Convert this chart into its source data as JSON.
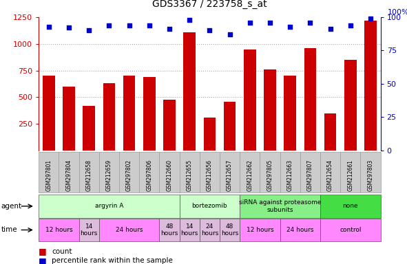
{
  "title": "GDS3367 / 223758_s_at",
  "samples": [
    "GSM297801",
    "GSM297804",
    "GSM212658",
    "GSM212659",
    "GSM297802",
    "GSM297806",
    "GSM212660",
    "GSM212655",
    "GSM212656",
    "GSM212657",
    "GSM212662",
    "GSM297805",
    "GSM212663",
    "GSM297807",
    "GSM212654",
    "GSM212661",
    "GSM297803"
  ],
  "counts": [
    700,
    600,
    420,
    630,
    700,
    690,
    475,
    1110,
    310,
    460,
    950,
    760,
    700,
    960,
    350,
    850,
    1220
  ],
  "percentiles": [
    93,
    92,
    90,
    94,
    94,
    94,
    91,
    98,
    90,
    87,
    96,
    96,
    93,
    96,
    91,
    94,
    99
  ],
  "bar_color": "#CC0000",
  "dot_color": "#0000CC",
  "ylim_left": [
    0,
    1250
  ],
  "ylim_right": [
    0,
    100
  ],
  "yticks_left": [
    250,
    500,
    750,
    1000,
    1250
  ],
  "yticks_right": [
    0,
    25,
    50,
    75,
    100
  ],
  "agent_groups": [
    {
      "label": "argyrin A",
      "start": 0,
      "end": 7,
      "color": "#ccffcc"
    },
    {
      "label": "bortezomib",
      "start": 7,
      "end": 10,
      "color": "#ccffcc"
    },
    {
      "label": "siRNA against proteasome\nsubunits",
      "start": 10,
      "end": 14,
      "color": "#88ee88"
    },
    {
      "label": "none",
      "start": 14,
      "end": 17,
      "color": "#44dd44"
    }
  ],
  "time_groups": [
    {
      "label": "12 hours",
      "start": 0,
      "end": 2,
      "color": "#ff88ff"
    },
    {
      "label": "14\nhours",
      "start": 2,
      "end": 3,
      "color": "#ddbbdd"
    },
    {
      "label": "24 hours",
      "start": 3,
      "end": 6,
      "color": "#ff88ff"
    },
    {
      "label": "48\nhours",
      "start": 6,
      "end": 7,
      "color": "#ddbbdd"
    },
    {
      "label": "14\nhours",
      "start": 7,
      "end": 8,
      "color": "#ddbbdd"
    },
    {
      "label": "24\nhours",
      "start": 8,
      "end": 9,
      "color": "#ddbbdd"
    },
    {
      "label": "48\nhours",
      "start": 9,
      "end": 10,
      "color": "#ddbbdd"
    },
    {
      "label": "12 hours",
      "start": 10,
      "end": 12,
      "color": "#ff88ff"
    },
    {
      "label": "24 hours",
      "start": 12,
      "end": 14,
      "color": "#ff88ff"
    },
    {
      "label": "control",
      "start": 14,
      "end": 17,
      "color": "#ff88ff"
    }
  ],
  "bar_color_hex": "#CC0000",
  "dot_color_hex": "#0000CC",
  "background_color": "#ffffff",
  "grid_color": "#aaaaaa",
  "sample_bg_color": "#cccccc",
  "agent_label_color": "#000000",
  "time_label_color": "#000000"
}
